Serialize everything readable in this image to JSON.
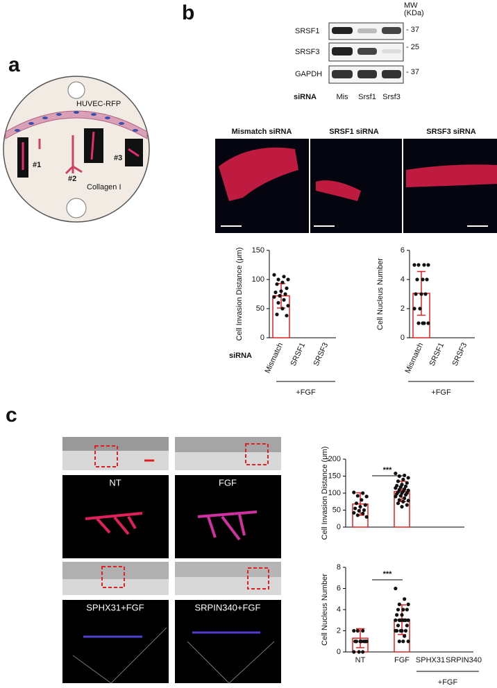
{
  "panel_a": {
    "letter": "a",
    "cells": "HUVEC-RFP",
    "sprouts": [
      "#1",
      "#2",
      "#3"
    ],
    "matrix": "Collagen I"
  },
  "panel_b": {
    "letter": "b",
    "mw": [
      "MW",
      "(KDa)"
    ],
    "blot_rows": [
      {
        "label": "SRSF1",
        "mw": "- 37"
      },
      {
        "label": "SRSF3",
        "mw": "- 25"
      },
      {
        "label": "GAPDH",
        "mw": "- 37"
      }
    ],
    "lane_header": "siRNA",
    "lanes": [
      "Mis",
      "Srsf1",
      "Srsf3"
    ],
    "image_titles": [
      "Mismatch siRNA",
      "SRSF1 siRNA",
      "SRSF3  siRNA"
    ]
  },
  "panel_c": {
    "letter": "c",
    "image_labels": [
      "NT",
      "FGF",
      "SPHX31+FGF",
      "SRPIN340+FGF"
    ]
  },
  "chart_data": [
    {
      "type": "bar",
      "y_label": "Cell Invasion Distance (μm)",
      "x_prefix": "siRNA",
      "categories": [
        "Mismatch",
        "SRSF1",
        "SRSF3"
      ],
      "values": [
        72,
        0,
        0
      ],
      "errors": [
        21,
        0,
        0
      ],
      "points": [
        [
          108,
          105,
          100,
          100,
          95,
          92,
          85,
          80,
          78,
          75,
          72,
          70,
          65,
          60,
          55,
          50,
          40,
          38
        ],
        [],
        []
      ],
      "ylim": [
        0,
        150
      ],
      "yticks": [
        0,
        50,
        100,
        150
      ],
      "color": "#e02020",
      "group_label": "+FGF"
    },
    {
      "type": "bar",
      "y_label": "Cell Nucleus Number",
      "categories": [
        "Mismatch",
        "SRSF1",
        "SRSF3"
      ],
      "values": [
        3.05,
        0,
        0
      ],
      "errors": [
        1.5,
        0,
        0
      ],
      "points": [
        [
          5,
          5,
          5,
          5,
          4,
          4,
          4,
          3,
          3,
          3,
          2,
          2,
          1,
          1,
          1,
          1
        ],
        [],
        []
      ],
      "ylim": [
        0,
        6
      ],
      "yticks": [
        0,
        2,
        4,
        6
      ],
      "color": "#e02020",
      "group_label": "+FGF"
    },
    {
      "type": "bar",
      "y_label": "Cell Invasion Distance (μm)",
      "categories": [
        null,
        null,
        null,
        null
      ],
      "values": [
        68,
        105,
        0,
        0
      ],
      "errors": [
        33,
        30,
        0,
        0
      ],
      "points": [
        [
          102,
          100,
          92,
          90,
          80,
          70,
          65,
          60,
          55,
          50,
          48,
          42,
          40,
          35,
          30
        ],
        [
          158,
          152,
          150,
          145,
          140,
          135,
          130,
          125,
          122,
          120,
          118,
          115,
          112,
          110,
          108,
          105,
          103,
          100,
          100,
          98,
          95,
          92,
          90,
          85,
          80,
          78,
          75,
          70,
          65,
          60
        ],
        [],
        []
      ],
      "ylim": [
        0,
        200
      ],
      "yticks": [
        0,
        50,
        100,
        150,
        200
      ],
      "color": "#e02020",
      "annotation": "***"
    },
    {
      "type": "bar",
      "y_label": "Cell Nucleus Number",
      "categories": [
        "NT",
        "FGF",
        "SPHX31",
        "SRPIN340"
      ],
      "values": [
        1.3,
        3.05,
        0,
        0
      ],
      "errors": [
        0.9,
        1.4,
        0,
        0
      ],
      "points": [
        [
          2,
          2,
          2,
          1,
          1,
          1,
          1,
          1,
          1,
          1,
          0,
          0,
          0
        ],
        [
          6,
          5,
          4.5,
          4.5,
          4,
          4,
          4,
          3.5,
          3.5,
          3,
          3,
          3,
          3,
          3,
          3,
          3,
          2.5,
          2.5,
          2,
          2,
          2,
          2,
          2,
          1.5,
          1,
          1,
          1
        ],
        [],
        []
      ],
      "ylim": [
        0,
        8
      ],
      "yticks": [
        0,
        2,
        4,
        6,
        8
      ],
      "color": "#e02020",
      "annotation": "***",
      "group_label": "+FGF"
    }
  ]
}
